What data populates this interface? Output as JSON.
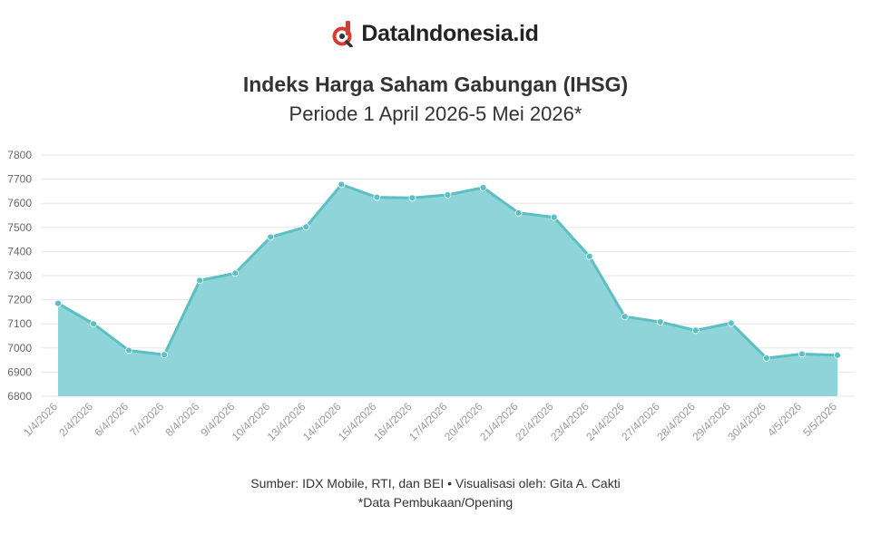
{
  "brand": {
    "name": "DataIndonesia.id",
    "logo_color": "#d63a34",
    "logo_icon": "magnifier-letter-d-icon"
  },
  "header": {
    "title": "Indeks Harga Saham Gabungan (IHSG)",
    "subtitle": "Periode 1 April 2026-5 Mei 2026*"
  },
  "footer": {
    "source": "Sumber: IDX Mobile, RTI, dan BEI • Visualisasi oleh: Gita A. Cakti",
    "note": "*Data Pembukaan/Opening"
  },
  "chart_data": {
    "type": "area",
    "categories": [
      "1/4/2026",
      "2/4/2026",
      "6/4/2026",
      "7/4/2026",
      "8/4/2026",
      "9/4/2026",
      "10/4/2026",
      "13/4/2026",
      "14/4/2026",
      "15/4/2026",
      "16/4/2026",
      "17/4/2026",
      "20/4/2026",
      "21/4/2026",
      "22/4/2026",
      "23/4/2026",
      "24/4/2026",
      "27/4/2026",
      "28/4/2026",
      "29/4/2026",
      "30/4/2026",
      "4/5/2026",
      "5/5/2026"
    ],
    "values": [
      7185,
      7100,
      6990,
      6972,
      7280,
      7310,
      7460,
      7502,
      7678,
      7625,
      7622,
      7635,
      7665,
      7560,
      7542,
      7380,
      7130,
      7108,
      7073,
      7103,
      6958,
      6975,
      6970
    ],
    "title": "Indeks Harga Saham Gabungan (IHSG)",
    "subtitle": "Periode 1 April 2026-5 Mei 2026*",
    "xlabel": "",
    "ylabel": "",
    "ylim": [
      6800,
      7800
    ],
    "yticks": [
      6800,
      6900,
      7000,
      7100,
      7200,
      7300,
      7400,
      7500,
      7600,
      7700,
      7800
    ],
    "grid": true,
    "legend": "none",
    "colors": {
      "fill": "#8fd4d9",
      "line": "#5bbfc4",
      "marker": "#5bbfc4",
      "grid": "#e6e6e6"
    }
  }
}
